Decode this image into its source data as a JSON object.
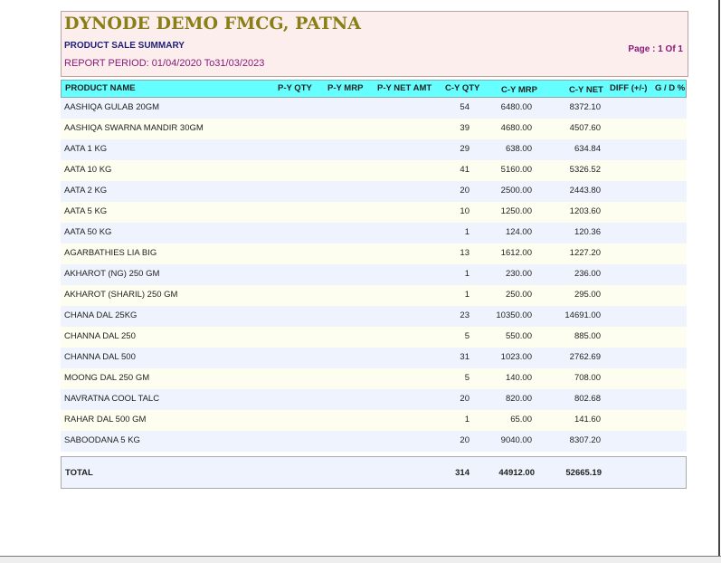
{
  "header": {
    "company": "DYNODE DEMO FMCG, PATNA",
    "report_name": "PRODUCT SALE SUMMARY",
    "period": "REPORT PERIOD: 01/04/2020 To31/03/2023",
    "page": "Page : 1 Of 1"
  },
  "columns": [
    "PRODUCT NAME",
    "P-Y QTY",
    "P-Y MRP",
    "P-Y NET AMT",
    "C-Y QTY",
    "C-Y MRP",
    "C-Y NET",
    "DIFF (+/-)",
    "G / D %"
  ],
  "row_colors": [
    "#eef3fd",
    "#fefef0"
  ],
  "rows": [
    {
      "name": "AASHIQA GULAB 20GM",
      "cy_qty": "54",
      "cy_mrp": "6480.00",
      "cy_net": "8372.10"
    },
    {
      "name": "AASHIQA SWARNA MANDIR 30GM",
      "cy_qty": "39",
      "cy_mrp": "4680.00",
      "cy_net": "4507.60"
    },
    {
      "name": "AATA 1 KG",
      "cy_qty": "29",
      "cy_mrp": "638.00",
      "cy_net": "634.84"
    },
    {
      "name": "AATA 10 KG",
      "cy_qty": "41",
      "cy_mrp": "5160.00",
      "cy_net": "5326.52"
    },
    {
      "name": "AATA 2 KG",
      "cy_qty": "20",
      "cy_mrp": "2500.00",
      "cy_net": "2443.80"
    },
    {
      "name": "AATA 5 KG",
      "cy_qty": "10",
      "cy_mrp": "1250.00",
      "cy_net": "1203.60"
    },
    {
      "name": "AATA 50 KG",
      "cy_qty": "1",
      "cy_mrp": "124.00",
      "cy_net": "120.36"
    },
    {
      "name": "AGARBATHIES LIA BIG",
      "cy_qty": "13",
      "cy_mrp": "1612.00",
      "cy_net": "1227.20"
    },
    {
      "name": "AKHAROT (NG) 250 GM",
      "cy_qty": "1",
      "cy_mrp": "230.00",
      "cy_net": "236.00"
    },
    {
      "name": "AKHAROT (SHARIL) 250 GM",
      "cy_qty": "1",
      "cy_mrp": "250.00",
      "cy_net": "295.00"
    },
    {
      "name": "CHANA DAL 25KG",
      "cy_qty": "23",
      "cy_mrp": "10350.00",
      "cy_net": "14691.00"
    },
    {
      "name": "CHANNA DAL 250",
      "cy_qty": "5",
      "cy_mrp": "550.00",
      "cy_net": "885.00"
    },
    {
      "name": "CHANNA DAL 500",
      "cy_qty": "31",
      "cy_mrp": "1023.00",
      "cy_net": "2762.69"
    },
    {
      "name": "MOONG DAL 250 GM",
      "cy_qty": "5",
      "cy_mrp": "140.00",
      "cy_net": "708.00"
    },
    {
      "name": "NAVRATNA COOL TALC",
      "cy_qty": "20",
      "cy_mrp": "820.00",
      "cy_net": "802.68"
    },
    {
      "name": "RAHAR DAL 500 GM",
      "cy_qty": "1",
      "cy_mrp": "65.00",
      "cy_net": "141.60"
    },
    {
      "name": "SABOODANA 5 KG",
      "cy_qty": "20",
      "cy_mrp": "9040.00",
      "cy_net": "8307.20"
    }
  ],
  "total": {
    "label": "TOTAL",
    "cy_qty": "314",
    "cy_mrp": "44912.00",
    "cy_net": "52665.19"
  }
}
